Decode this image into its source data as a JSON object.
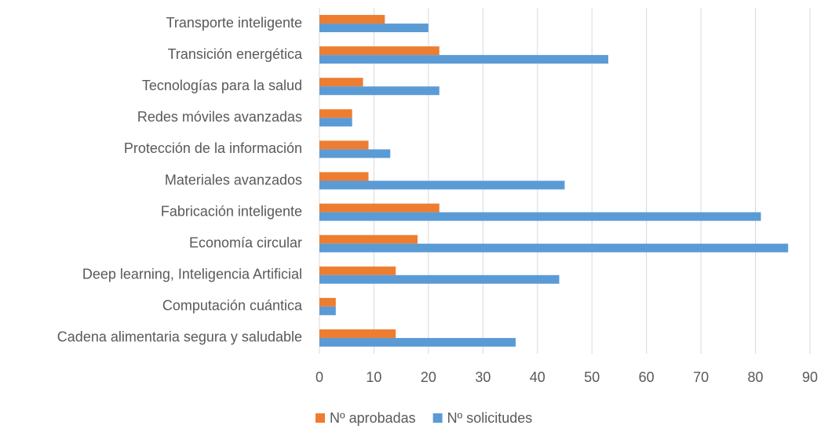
{
  "chart_data": {
    "type": "hbar",
    "categories": [
      "Transporte inteligente",
      "Transición energética",
      "Tecnologías para la salud",
      "Redes móviles avanzadas",
      "Protección de la información",
      "Materiales avanzados",
      "Fabricación inteligente",
      "Economía circular",
      "Deep learning, Inteligencia Artificial",
      "Computación cuántica",
      "Cadena alimentaria segura y saludable"
    ],
    "series": [
      {
        "name": "Nº aprobadas",
        "color": "#ed7d31",
        "values": [
          12,
          22,
          8,
          6,
          9,
          9,
          22,
          18,
          14,
          3,
          14
        ]
      },
      {
        "name": "Nº solicitudes",
        "color": "#5b9bd5",
        "values": [
          20,
          53,
          22,
          6,
          13,
          45,
          81,
          86,
          44,
          3,
          36
        ]
      }
    ],
    "xlim": [
      0,
      90
    ],
    "xticks": [
      0,
      10,
      20,
      30,
      40,
      50,
      60,
      70,
      80,
      90
    ],
    "grid": true,
    "legend": "bottom"
  }
}
